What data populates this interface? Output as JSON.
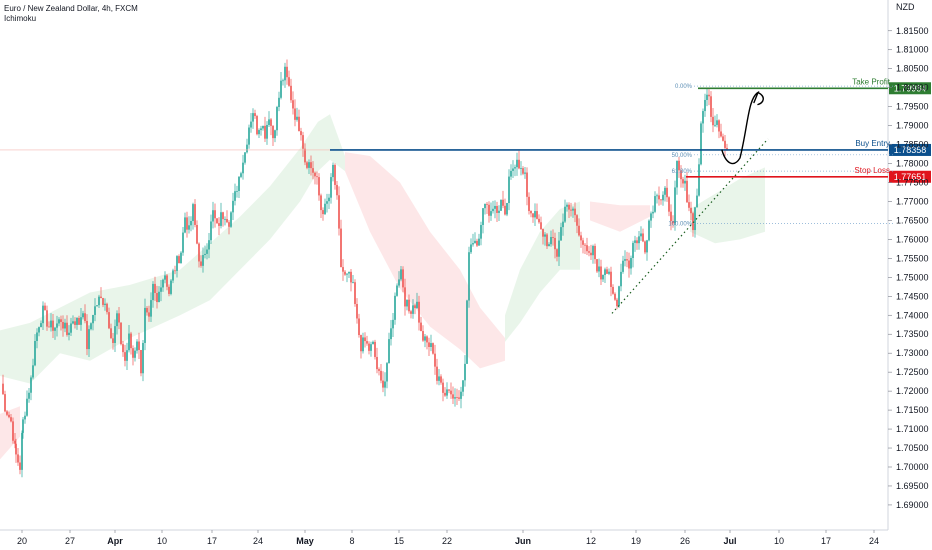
{
  "header": {
    "title": "Euro / New Zealand Dollar, 4h, FXCM",
    "indicator": "Ichimoku"
  },
  "chart_data": {
    "type": "candlestick",
    "currency": "NZD",
    "ylim": [
      1.6855,
      1.821
    ],
    "y_ticks": [
      "1.81500",
      "1.81000",
      "1.80500",
      "1.80000",
      "1.79500",
      "1.79000",
      "1.78500",
      "1.78000",
      "1.77500",
      "1.77000",
      "1.76500",
      "1.76000",
      "1.75500",
      "1.75000",
      "1.74500",
      "1.74000",
      "1.73500",
      "1.73000",
      "1.72500",
      "1.72000",
      "1.71500",
      "1.71000",
      "1.70500",
      "1.70000",
      "1.69500",
      "1.69000"
    ],
    "x_ticks": [
      {
        "label": "20",
        "bold": false
      },
      {
        "label": "27",
        "bold": false
      },
      {
        "label": "Apr",
        "bold": true
      },
      {
        "label": "10",
        "bold": false
      },
      {
        "label": "17",
        "bold": false
      },
      {
        "label": "24",
        "bold": false
      },
      {
        "label": "May",
        "bold": true
      },
      {
        "label": "8",
        "bold": false
      },
      {
        "label": "15",
        "bold": false
      },
      {
        "label": "22",
        "bold": false
      },
      {
        "label": "Jun",
        "bold": true
      },
      {
        "label": "12",
        "bold": false
      },
      {
        "label": "19",
        "bold": false
      },
      {
        "label": "26",
        "bold": false
      },
      {
        "label": "Jul",
        "bold": true
      },
      {
        "label": "10",
        "bold": false
      },
      {
        "label": "17",
        "bold": false
      },
      {
        "label": "24",
        "bold": false
      }
    ],
    "price_path": [
      [
        0,
        1.722
      ],
      [
        4,
        1.716
      ],
      [
        10,
        1.712
      ],
      [
        15,
        1.703
      ],
      [
        19,
        1.7
      ],
      [
        22,
        1.712
      ],
      [
        26,
        1.718
      ],
      [
        30,
        1.723
      ],
      [
        34,
        1.733
      ],
      [
        38,
        1.738
      ],
      [
        42,
        1.741
      ],
      [
        48,
        1.737
      ],
      [
        54,
        1.737
      ],
      [
        60,
        1.739
      ],
      [
        66,
        1.735
      ],
      [
        72,
        1.739
      ],
      [
        78,
        1.738
      ],
      [
        82,
        1.742
      ],
      [
        86,
        1.732
      ],
      [
        92,
        1.741
      ],
      [
        98,
        1.744
      ],
      [
        104,
        1.744
      ],
      [
        108,
        1.738
      ],
      [
        112,
        1.733
      ],
      [
        116,
        1.74
      ],
      [
        120,
        1.733
      ],
      [
        124,
        1.728
      ],
      [
        128,
        1.734
      ],
      [
        132,
        1.729
      ],
      [
        136,
        1.734
      ],
      [
        140,
        1.726
      ],
      [
        144,
        1.741
      ],
      [
        148,
        1.738
      ],
      [
        152,
        1.747
      ],
      [
        156,
        1.743
      ],
      [
        160,
        1.749
      ],
      [
        164,
        1.751
      ],
      [
        168,
        1.746
      ],
      [
        172,
        1.751
      ],
      [
        176,
        1.754
      ],
      [
        180,
        1.757
      ],
      [
        184,
        1.766
      ],
      [
        188,
        1.762
      ],
      [
        192,
        1.768
      ],
      [
        196,
        1.759
      ],
      [
        200,
        1.752
      ],
      [
        204,
        1.757
      ],
      [
        208,
        1.761
      ],
      [
        212,
        1.767
      ],
      [
        216,
        1.763
      ],
      [
        220,
        1.766
      ],
      [
        224,
        1.767
      ],
      [
        228,
        1.765
      ],
      [
        232,
        1.769
      ],
      [
        236,
        1.774
      ],
      [
        240,
        1.779
      ],
      [
        244,
        1.783
      ],
      [
        248,
        1.79
      ],
      [
        252,
        1.794
      ],
      [
        256,
        1.789
      ],
      [
        260,
        1.791
      ],
      [
        264,
        1.788
      ],
      [
        268,
        1.793
      ],
      [
        272,
        1.787
      ],
      [
        276,
        1.794
      ],
      [
        280,
        1.801
      ],
      [
        284,
        1.804
      ],
      [
        288,
        1.8
      ],
      [
        292,
        1.795
      ],
      [
        296,
        1.791
      ],
      [
        300,
        1.789
      ],
      [
        304,
        1.781
      ],
      [
        308,
        1.78
      ],
      [
        312,
        1.778
      ],
      [
        316,
        1.775
      ],
      [
        320,
        1.768
      ],
      [
        324,
        1.768
      ],
      [
        328,
        1.771
      ],
      [
        332,
        1.779
      ],
      [
        336,
        1.77
      ],
      [
        340,
        1.753
      ],
      [
        344,
        1.75
      ],
      [
        348,
        1.75
      ],
      [
        352,
        1.747
      ],
      [
        356,
        1.738
      ],
      [
        360,
        1.732
      ],
      [
        364,
        1.733
      ],
      [
        368,
        1.731
      ],
      [
        372,
        1.732
      ],
      [
        376,
        1.726
      ],
      [
        380,
        1.722
      ],
      [
        384,
        1.723
      ],
      [
        388,
        1.732
      ],
      [
        392,
        1.74
      ],
      [
        396,
        1.749
      ],
      [
        400,
        1.752
      ],
      [
        404,
        1.744
      ],
      [
        408,
        1.741
      ],
      [
        412,
        1.743
      ],
      [
        416,
        1.743
      ],
      [
        420,
        1.735
      ],
      [
        424,
        1.733
      ],
      [
        428,
        1.732
      ],
      [
        432,
        1.731
      ],
      [
        436,
        1.723
      ],
      [
        440,
        1.722
      ],
      [
        444,
        1.72
      ],
      [
        448,
        1.721
      ],
      [
        452,
        1.718
      ],
      [
        456,
        1.72
      ],
      [
        460,
        1.719
      ],
      [
        464,
        1.727
      ],
      [
        468,
        1.758
      ],
      [
        472,
        1.76
      ],
      [
        476,
        1.76
      ],
      [
        480,
        1.763
      ],
      [
        484,
        1.771
      ],
      [
        488,
        1.767
      ],
      [
        492,
        1.769
      ],
      [
        496,
        1.767
      ],
      [
        500,
        1.77
      ],
      [
        504,
        1.765
      ],
      [
        508,
        1.775
      ],
      [
        512,
        1.779
      ],
      [
        516,
        1.782
      ],
      [
        520,
        1.778
      ],
      [
        524,
        1.776
      ],
      [
        528,
        1.768
      ],
      [
        532,
        1.767
      ],
      [
        536,
        1.765
      ],
      [
        540,
        1.762
      ],
      [
        544,
        1.761
      ],
      [
        548,
        1.758
      ],
      [
        552,
        1.76
      ],
      [
        556,
        1.756
      ],
      [
        560,
        1.763
      ],
      [
        564,
        1.769
      ],
      [
        568,
        1.767
      ],
      [
        572,
        1.768
      ],
      [
        576,
        1.764
      ],
      [
        580,
        1.761
      ],
      [
        584,
        1.757
      ],
      [
        588,
        1.755
      ],
      [
        592,
        1.757
      ],
      [
        596,
        1.753
      ],
      [
        600,
        1.75
      ],
      [
        604,
        1.753
      ],
      [
        608,
        1.752
      ],
      [
        612,
        1.744
      ],
      [
        616,
        1.742
      ],
      [
        620,
        1.753
      ],
      [
        624,
        1.756
      ],
      [
        628,
        1.753
      ],
      [
        632,
        1.759
      ],
      [
        636,
        1.76
      ],
      [
        640,
        1.761
      ],
      [
        644,
        1.758
      ],
      [
        648,
        1.765
      ],
      [
        652,
        1.769
      ],
      [
        656,
        1.773
      ],
      [
        660,
        1.771
      ],
      [
        664,
        1.773
      ],
      [
        668,
        1.766
      ],
      [
        672,
        1.766
      ],
      [
        676,
        1.779
      ],
      [
        680,
        1.775
      ],
      [
        684,
        1.774
      ],
      [
        688,
        1.769
      ],
      [
        692,
        1.764
      ],
      [
        696,
        1.772
      ],
      [
        700,
        1.789
      ],
      [
        704,
        1.798
      ],
      [
        708,
        1.797
      ],
      [
        712,
        1.791
      ],
      [
        716,
        1.792
      ],
      [
        720,
        1.788
      ],
      [
        724,
        1.784
      ],
      [
        727,
        1.783
      ]
    ],
    "kumo_bull": [
      [
        0,
        1.736,
        1.724
      ],
      [
        30,
        1.738,
        1.722
      ],
      [
        60,
        1.742,
        1.73
      ],
      [
        90,
        1.746,
        1.728
      ],
      [
        130,
        1.748,
        1.734
      ],
      [
        180,
        1.752,
        1.74
      ],
      [
        210,
        1.759,
        1.744
      ],
      [
        240,
        1.766,
        1.752
      ],
      [
        270,
        1.774,
        1.76
      ],
      [
        300,
        1.784,
        1.77
      ],
      [
        318,
        1.791,
        1.778
      ],
      [
        330,
        1.793,
        1.781
      ],
      [
        345,
        1.782,
        1.778
      ],
      [
        505,
        1.74,
        1.733
      ],
      [
        520,
        1.752,
        1.738
      ],
      [
        540,
        1.762,
        1.746
      ],
      [
        560,
        1.768,
        1.752
      ],
      [
        580,
        1.77,
        1.752
      ],
      [
        690,
        1.768,
        1.762
      ],
      [
        715,
        1.772,
        1.759
      ],
      [
        740,
        1.776,
        1.76
      ],
      [
        765,
        1.779,
        1.762
      ]
    ],
    "kumo_bear": [
      [
        0,
        1.714,
        1.702
      ],
      [
        20,
        1.716,
        1.708
      ],
      [
        345,
        1.783,
        1.778
      ],
      [
        370,
        1.782,
        1.762
      ],
      [
        400,
        1.775,
        1.747
      ],
      [
        430,
        1.762,
        1.737
      ],
      [
        460,
        1.752,
        1.731
      ],
      [
        480,
        1.742,
        1.726
      ],
      [
        505,
        1.734,
        1.728
      ],
      [
        590,
        1.77,
        1.765
      ],
      [
        620,
        1.769,
        1.762
      ],
      [
        650,
        1.769,
        1.766
      ]
    ],
    "levels": [
      {
        "name": "Take Profit",
        "price": 1.79984,
        "label": "Take Profit",
        "tag": "1.79984",
        "color": "#2e7d32"
      },
      {
        "name": "Buy Entry",
        "price": 1.78358,
        "label": "Buy Entry",
        "tag": "1.78358",
        "color": "#0b4f8c"
      },
      {
        "name": "Stop Loss",
        "price": 1.77651,
        "label": "Stop Loss",
        "tag": "1.77651",
        "color": "#e0141d"
      }
    ],
    "fib": [
      {
        "label": "0.00%",
        "price": 1.8004
      },
      {
        "label": "50.00%",
        "price": 1.7823
      },
      {
        "label": "61.80%",
        "price": 1.778
      },
      {
        "label": "100.00%",
        "price": 1.7642
      }
    ],
    "trendline": {
      "from": [
        612,
        1.7405
      ],
      "to": [
        768,
        1.7865
      ]
    }
  }
}
